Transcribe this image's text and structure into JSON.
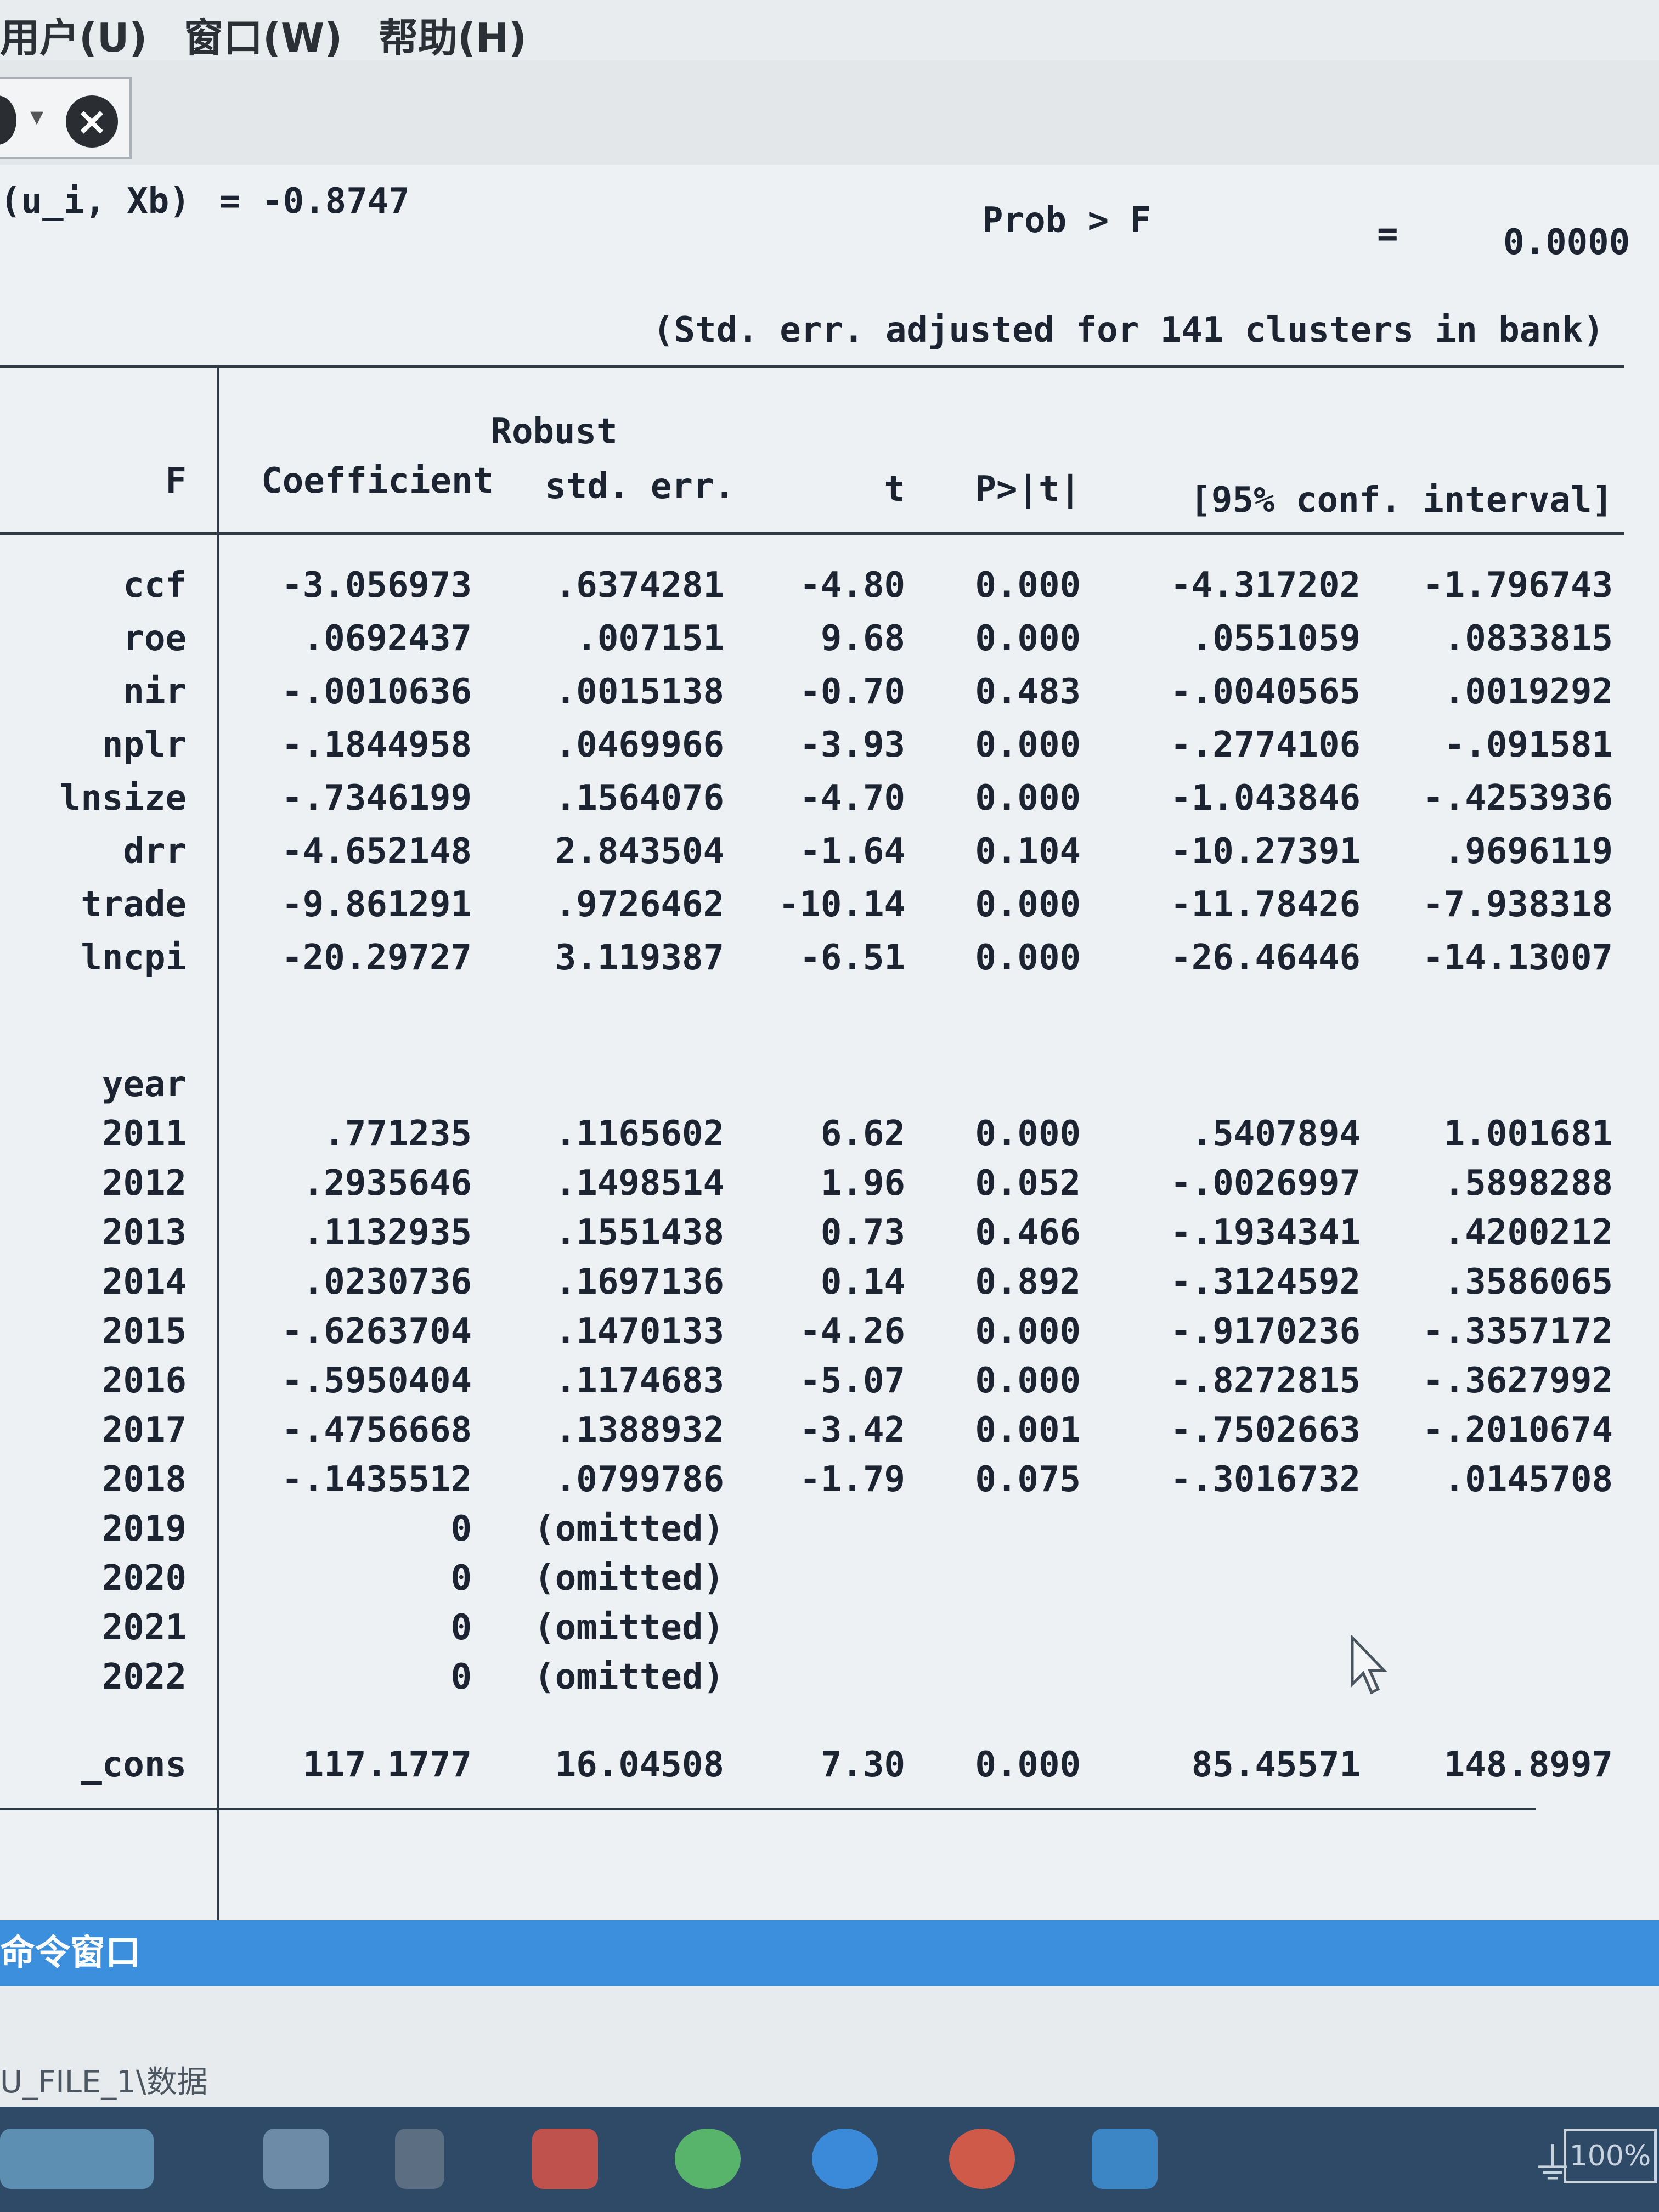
{
  "menu": {
    "user": "用户(U)",
    "window": "窗口(W)",
    "help": "帮助(H)"
  },
  "stats": {
    "corr_label": "(u_i, Xb)",
    "corr_value": "= -0.8747",
    "prob_label": "Prob > F",
    "prob_eq": "=",
    "prob_value": "0.0000",
    "cluster_note": "(Std. err. adjusted for 141 clusters in bank)"
  },
  "table": {
    "headers": {
      "var": "F",
      "coef": "Coefficient",
      "robust": "Robust",
      "se": "std. err.",
      "t": "t",
      "p": "P>|t|",
      "ci": "[95% conf. interval]"
    },
    "rows": [
      {
        "name": "ccf",
        "coef": "-3.056973",
        "se": ".6374281",
        "t": "-4.80",
        "p": "0.000",
        "lo": "-4.317202",
        "hi": "-1.796743"
      },
      {
        "name": "roe",
        "coef": ".0692437",
        "se": ".007151",
        "t": "9.68",
        "p": "0.000",
        "lo": ".0551059",
        "hi": ".0833815"
      },
      {
        "name": "nir",
        "coef": "-.0010636",
        "se": ".0015138",
        "t": "-0.70",
        "p": "0.483",
        "lo": "-.0040565",
        "hi": ".0019292"
      },
      {
        "name": "nplr",
        "coef": "-.1844958",
        "se": ".0469966",
        "t": "-3.93",
        "p": "0.000",
        "lo": "-.2774106",
        "hi": "-.091581"
      },
      {
        "name": "lnsize",
        "coef": "-.7346199",
        "se": ".1564076",
        "t": "-4.70",
        "p": "0.000",
        "lo": "-1.043846",
        "hi": "-.4253936"
      },
      {
        "name": "drr",
        "coef": "-4.652148",
        "se": "2.843504",
        "t": "-1.64",
        "p": "0.104",
        "lo": "-10.27391",
        "hi": ".9696119"
      },
      {
        "name": "trade",
        "coef": "-9.861291",
        "se": ".9726462",
        "t": "-10.14",
        "p": "0.000",
        "lo": "-11.78426",
        "hi": "-7.938318"
      },
      {
        "name": "lncpi",
        "coef": "-20.29727",
        "se": "3.119387",
        "t": "-6.51",
        "p": "0.000",
        "lo": "-26.46446",
        "hi": "-14.13007"
      }
    ],
    "year_label": "year",
    "years": [
      {
        "name": "2011",
        "coef": ".771235",
        "se": ".1165602",
        "t": "6.62",
        "p": "0.000",
        "lo": ".5407894",
        "hi": "1.001681"
      },
      {
        "name": "2012",
        "coef": ".2935646",
        "se": ".1498514",
        "t": "1.96",
        "p": "0.052",
        "lo": "-.0026997",
        "hi": ".5898288"
      },
      {
        "name": "2013",
        "coef": ".1132935",
        "se": ".1551438",
        "t": "0.73",
        "p": "0.466",
        "lo": "-.1934341",
        "hi": ".4200212"
      },
      {
        "name": "2014",
        "coef": ".0230736",
        "se": ".1697136",
        "t": "0.14",
        "p": "0.892",
        "lo": "-.3124592",
        "hi": ".3586065"
      },
      {
        "name": "2015",
        "coef": "-.6263704",
        "se": ".1470133",
        "t": "-4.26",
        "p": "0.000",
        "lo": "-.9170236",
        "hi": "-.3357172"
      },
      {
        "name": "2016",
        "coef": "-.5950404",
        "se": ".1174683",
        "t": "-5.07",
        "p": "0.000",
        "lo": "-.8272815",
        "hi": "-.3627992"
      },
      {
        "name": "2017",
        "coef": "-.4756668",
        "se": ".1388932",
        "t": "-3.42",
        "p": "0.001",
        "lo": "-.7502663",
        "hi": "-.2010674"
      },
      {
        "name": "2018",
        "coef": "-.1435512",
        "se": ".0799786",
        "t": "-1.79",
        "p": "0.075",
        "lo": "-.3016732",
        "hi": ".0145708"
      },
      {
        "name": "2019",
        "coef": "0",
        "se": "(omitted)",
        "t": "",
        "p": "",
        "lo": "",
        "hi": ""
      },
      {
        "name": "2020",
        "coef": "0",
        "se": "(omitted)",
        "t": "",
        "p": "",
        "lo": "",
        "hi": ""
      },
      {
        "name": "2021",
        "coef": "0",
        "se": "(omitted)",
        "t": "",
        "p": "",
        "lo": "",
        "hi": ""
      },
      {
        "name": "2022",
        "coef": "0",
        "se": "(omitted)",
        "t": "",
        "p": "",
        "lo": "",
        "hi": ""
      }
    ],
    "cons": {
      "name": "_cons",
      "coef": "117.1777",
      "se": "16.04508",
      "t": "7.30",
      "p": "0.000",
      "lo": "85.45571",
      "hi": "148.8997"
    }
  },
  "command_bar": {
    "label": "命令窗口"
  },
  "path": {
    "text": "U_FILE_1\\数据"
  },
  "taskbar": {
    "battery": "100%"
  },
  "icons": {
    "toolbar_dropdown": "chevron-down-icon",
    "toolbar_close": "close-icon",
    "cursor": "mouse-pointer-icon"
  },
  "colors": {
    "command_bar": "#3c8fdd",
    "taskbar": "#2f4a66"
  }
}
